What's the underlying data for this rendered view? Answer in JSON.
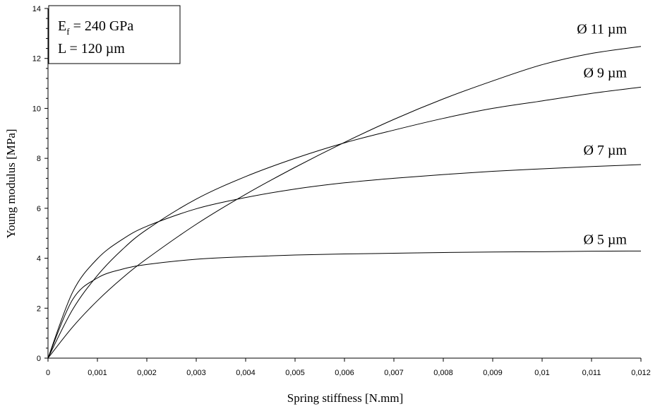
{
  "chart_data": {
    "type": "line",
    "title": "",
    "xlabel": "Spring stiffness [N.mm]",
    "ylabel": "Young modulus [MPa]",
    "xlim": [
      0,
      0.012
    ],
    "ylim": [
      0,
      14
    ],
    "x_ticks": [
      "0",
      "0,001",
      "0,002",
      "0,003",
      "0,004",
      "0,005",
      "0,006",
      "0,007",
      "0,008",
      "0,009",
      "0,01",
      "0,011",
      "0,012"
    ],
    "y_ticks": [
      "0",
      "2",
      "4",
      "6",
      "8",
      "10",
      "12",
      "14"
    ],
    "grid": false,
    "legend": "inline labels at right end of curves",
    "annotation": {
      "line1_main": "E",
      "line1_sub": "f",
      "line1_rest": " = 240 GPa",
      "line2": "L = 120 µm"
    },
    "x": [
      0,
      0.0005,
      0.001,
      0.0015,
      0.002,
      0.003,
      0.004,
      0.005,
      0.006,
      0.007,
      0.008,
      0.009,
      0.01,
      0.011,
      0.012
    ],
    "series": [
      {
        "name": "Ø 5 µm",
        "values": [
          0,
          2.35,
          3.21,
          3.56,
          3.75,
          3.96,
          4.06,
          4.13,
          4.17,
          4.2,
          4.23,
          4.25,
          4.26,
          4.28,
          4.29
        ]
      },
      {
        "name": "Ø 7 µm",
        "values": [
          0,
          2.65,
          3.98,
          4.75,
          5.28,
          5.98,
          6.43,
          6.77,
          7.02,
          7.2,
          7.35,
          7.48,
          7.58,
          7.67,
          7.75
        ]
      },
      {
        "name": "Ø 9 µm",
        "values": [
          0,
          1.95,
          3.31,
          4.34,
          5.15,
          6.37,
          7.27,
          8.0,
          8.62,
          9.13,
          9.6,
          10.0,
          10.3,
          10.6,
          10.85
        ]
      },
      {
        "name": "Ø 11 µm",
        "values": [
          0,
          1.25,
          2.3,
          3.2,
          3.98,
          5.36,
          6.56,
          7.64,
          8.64,
          9.56,
          10.38,
          11.1,
          11.75,
          12.2,
          12.48
        ]
      }
    ]
  }
}
